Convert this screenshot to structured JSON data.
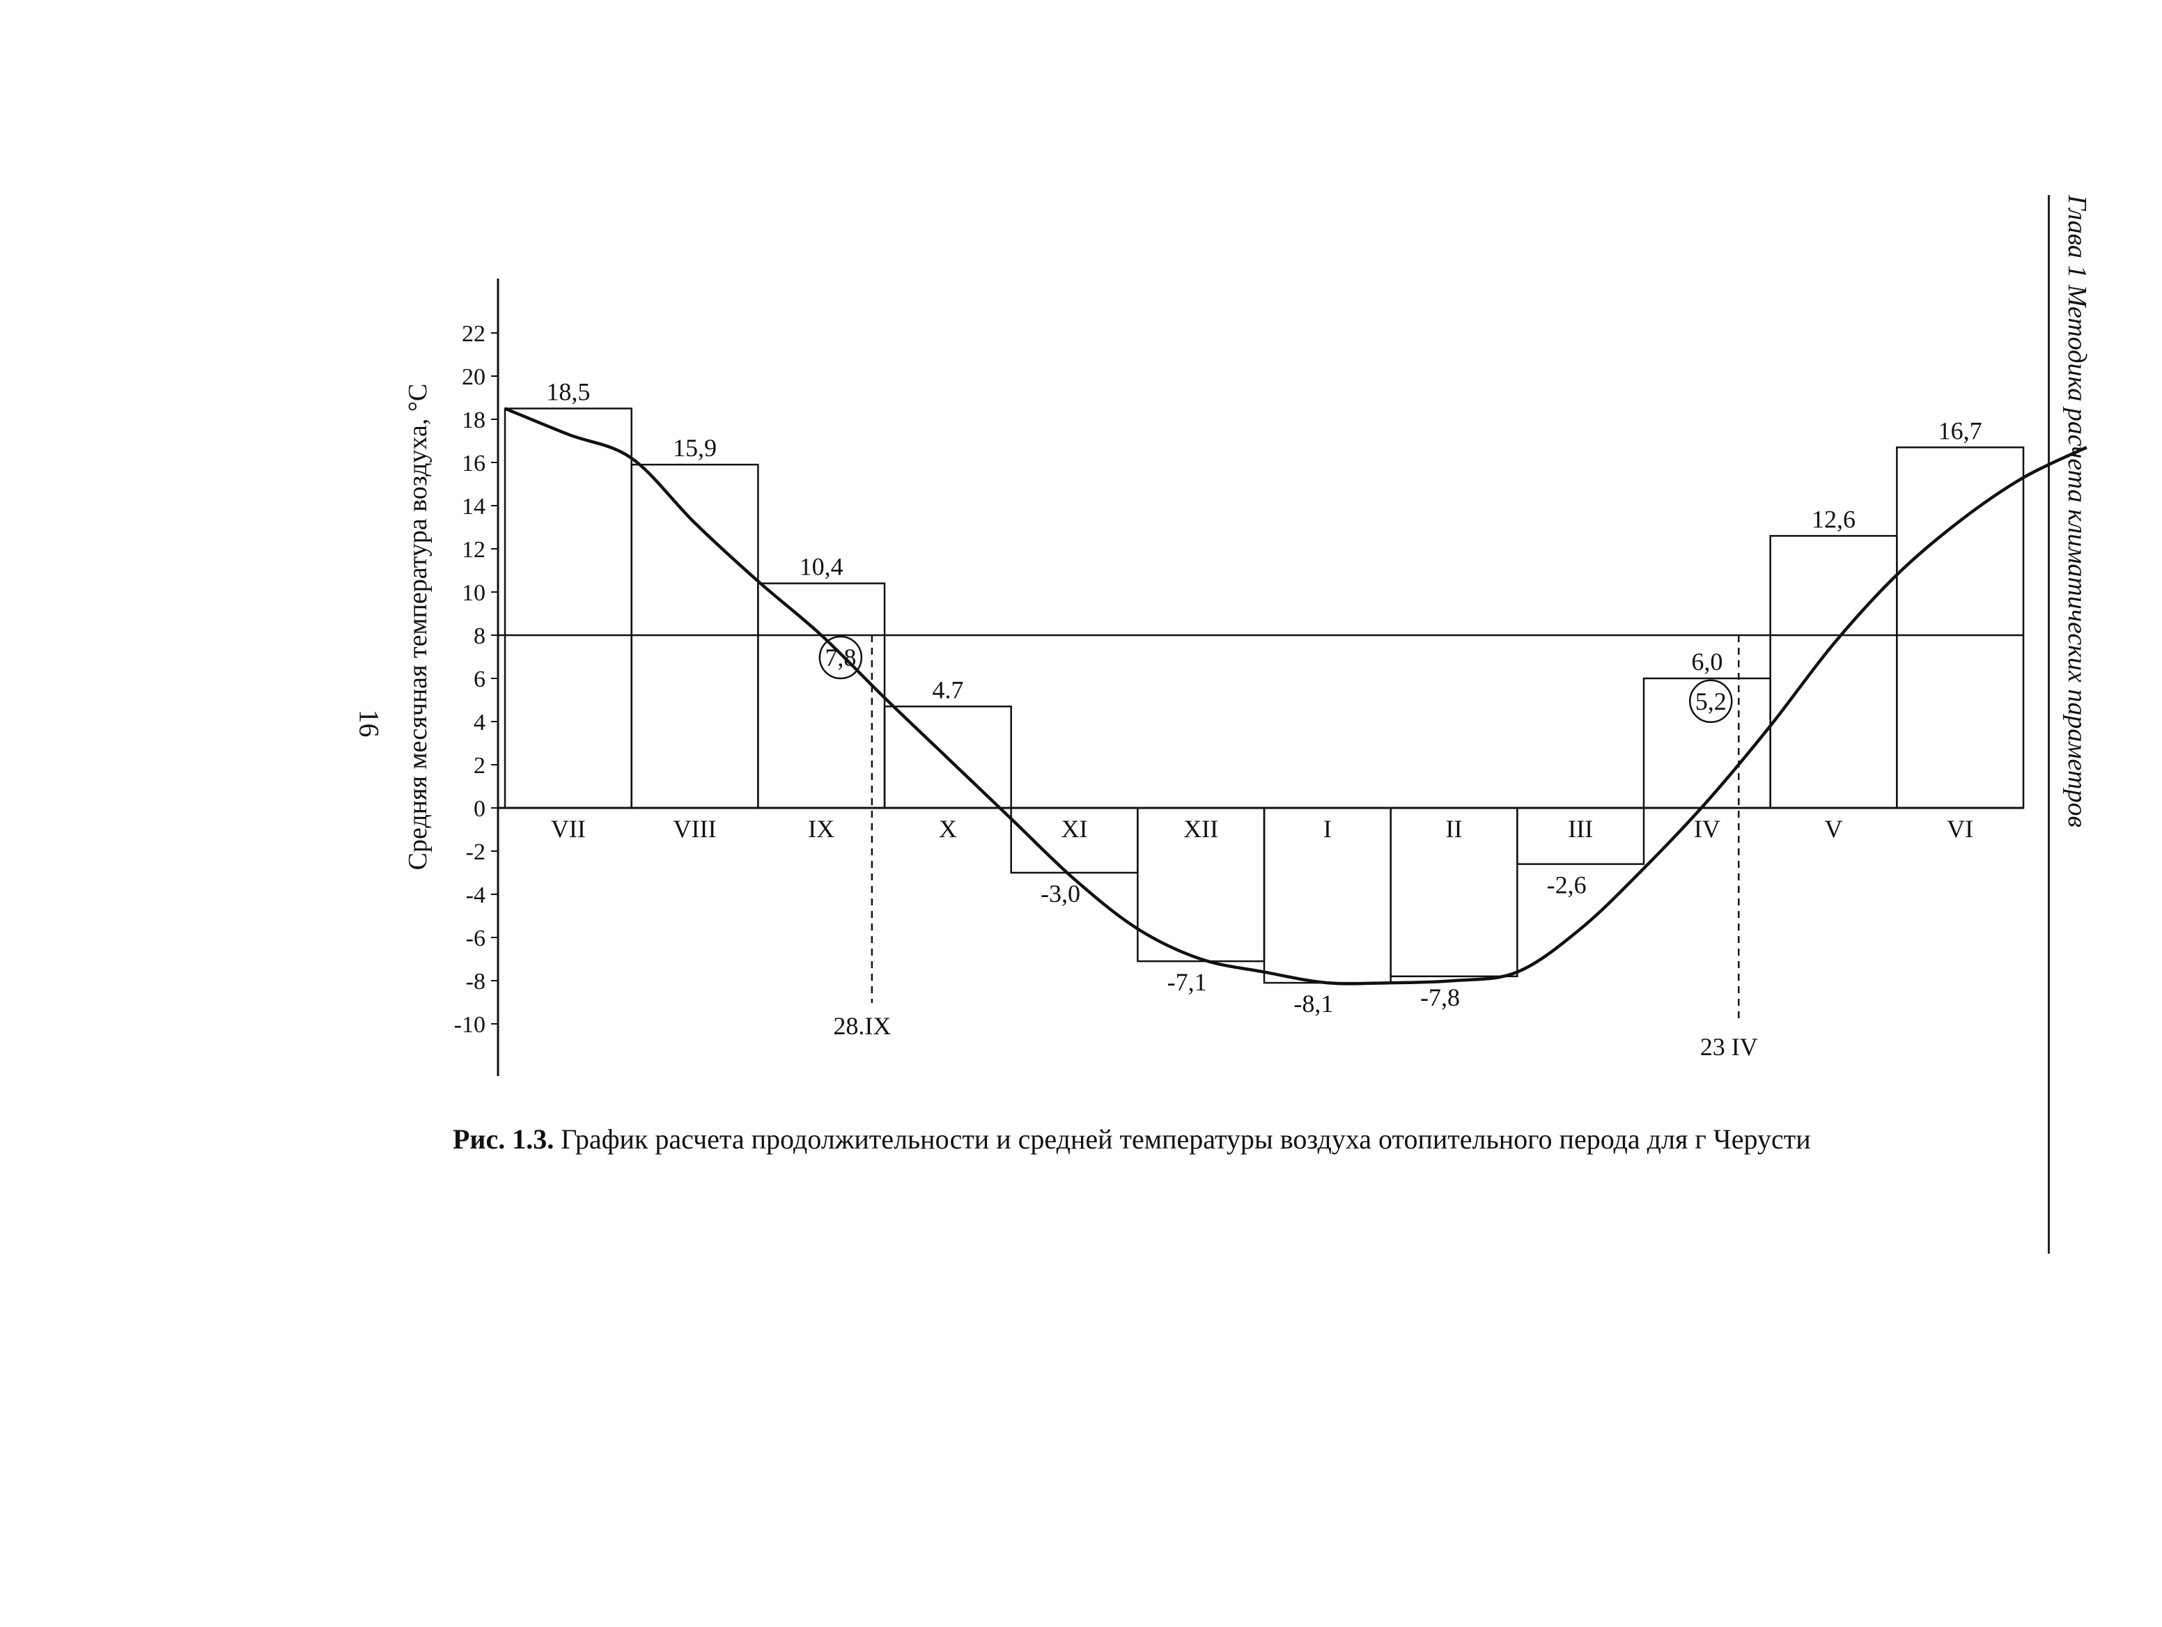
{
  "page": {
    "number": "16",
    "running_head": "Глава 1 Методика расчета климатических параметров",
    "caption_prefix": "Рис. 1.3.",
    "caption_text": " График расчета продолжительности и средней температуры воздуха отопительного перода для г  Черусти"
  },
  "chart_data": {
    "type": "bar",
    "ylabel": "Средняя месячная температура воздуха, °С",
    "ylim": [
      -10,
      22
    ],
    "yticks": [
      "22",
      "20",
      "18",
      "16",
      "14",
      "12",
      "10",
      "8",
      "6",
      "4",
      "2",
      "0",
      "-2",
      "-4",
      "-6",
      "-8",
      "-10"
    ],
    "ytick_values": [
      22,
      20,
      18,
      16,
      14,
      12,
      10,
      8,
      6,
      4,
      2,
      0,
      -2,
      -4,
      -6,
      -8,
      -10
    ],
    "categories": [
      "VII",
      "VIII",
      "IX",
      "X",
      "XI",
      "XII",
      "I",
      "II",
      "III",
      "IV",
      "V",
      "VI"
    ],
    "values": [
      18.5,
      15.9,
      10.4,
      4.7,
      -3.0,
      -7.1,
      -8.1,
      -7.8,
      -2.6,
      6.0,
      12.6,
      16.7
    ],
    "value_labels": [
      "18,5",
      "15,9",
      "10,4",
      "4.7",
      "-3,0",
      "-7,1",
      "-8,1",
      "-7,8",
      "-2,6",
      "6,0",
      "12,6",
      "16,7"
    ],
    "reference_line": 8,
    "curve_points": [
      [
        0.0,
        18.5
      ],
      [
        0.5,
        17.3
      ],
      [
        1.0,
        16.2
      ],
      [
        1.5,
        13.2
      ],
      [
        2.0,
        10.5
      ],
      [
        2.5,
        8.0
      ],
      [
        3.0,
        5.1
      ],
      [
        3.5,
        2.3
      ],
      [
        4.0,
        -0.5
      ],
      [
        4.5,
        -3.3
      ],
      [
        5.0,
        -5.6
      ],
      [
        5.5,
        -7.0
      ],
      [
        6.0,
        -7.6
      ],
      [
        6.5,
        -8.1
      ],
      [
        7.0,
        -8.1
      ],
      [
        7.5,
        -8.0
      ],
      [
        8.0,
        -7.6
      ],
      [
        8.5,
        -5.6
      ],
      [
        9.0,
        -2.8
      ],
      [
        9.5,
        0.3
      ],
      [
        10.0,
        3.8
      ],
      [
        10.5,
        7.6
      ],
      [
        11.0,
        10.8
      ],
      [
        11.5,
        13.3
      ],
      [
        12.0,
        15.3
      ],
      [
        12.5,
        16.7
      ]
    ],
    "markers": [
      {
        "label": "28.IX",
        "circled_value": "7,8",
        "x_pos": 2.9
      },
      {
        "label": "23 IV",
        "circled_value": "5,2",
        "x_pos": 9.75
      }
    ]
  }
}
